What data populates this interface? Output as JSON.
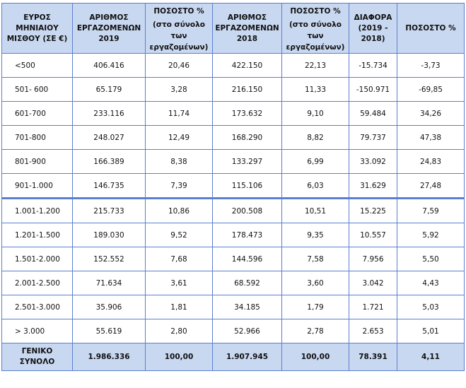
{
  "headers": {
    "range": "ΕΥΡΟΣ ΜΗΝΙΑΙΟΥ ΜΙΣΘΟΥ (ΣΕ €)",
    "employees_2019": "ΑΡΙΘΜΟΣ ΕΡΓΑΖΟΜΕΝΩΝ 2019",
    "pct_2019_title": "ΠΟΣΟΣΤΟ %",
    "pct_2019_note": "(στο σύνολο των εργαζομένων)",
    "employees_2018": "ΑΡΙΘΜΟΣ ΕΡΓΑΖΟΜΕΝΩΝ 2018",
    "pct_2018_title": "ΠΟΣΟΣΤΟ %",
    "pct_2018_note": "(στο σύνολο των εργαζομένων)",
    "diff": "ΔΙΑΦΟΡΑ (2019 - 2018)",
    "pct_change": "ΠΟΣΟΣΤΟ %"
  },
  "rows": [
    [
      "<500",
      "406.416",
      "20,46",
      "422.150",
      "22,13",
      "-15.734",
      "-3,73"
    ],
    [
      "501- 600",
      "65.179",
      "3,28",
      "216.150",
      "11,33",
      "-150.971",
      "-69,85"
    ],
    [
      "601-700",
      "233.116",
      "11,74",
      "173.632",
      "9,10",
      "59.484",
      "34,26"
    ],
    [
      "701-800",
      "248.027",
      "12,49",
      "168.290",
      "8,82",
      "79.737",
      "47,38"
    ],
    [
      "801-900",
      "166.389",
      "8,38",
      "133.297",
      "6,99",
      "33.092",
      "24,83"
    ],
    [
      "901-1.000",
      "146.735",
      "7,39",
      "115.106",
      "6,03",
      "31.629",
      "27,48"
    ],
    [
      "1.001-1.200",
      "215.733",
      "10,86",
      "200.508",
      "10,51",
      "15.225",
      "7,59"
    ],
    [
      "1.201-1.500",
      "189.030",
      "9,52",
      "178.473",
      "9,35",
      "10.557",
      "5,92"
    ],
    [
      "1.501-2.000",
      "152.552",
      "7,68",
      "144.596",
      "7,58",
      "7.956",
      "5,50"
    ],
    [
      "2.001-2.500",
      "71.634",
      "3,61",
      "68.592",
      "3,60",
      "3.042",
      "4,43"
    ],
    [
      "2.501-3.000",
      "35.906",
      "1,81",
      "34.185",
      "1,79",
      "1.721",
      "5,03"
    ],
    [
      "> 3.000",
      "55.619",
      "2,80",
      "52.966",
      "2,78",
      "2.653",
      "5,01"
    ]
  ],
  "total": [
    "ΓΕΝΙΚΟ ΣΥΝΟΛΟ",
    "1.986.336",
    "100,00",
    "1.907.945",
    "100,00",
    "78.391",
    "4,11"
  ]
}
